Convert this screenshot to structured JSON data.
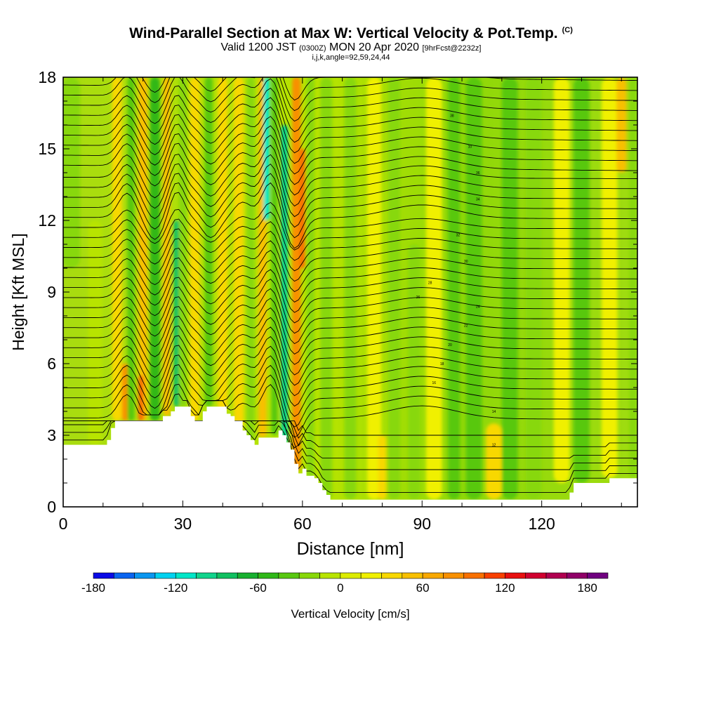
{
  "header": {
    "title": "Wind-Parallel Section at Max W: Vertical Velocity & Pot.Temp.",
    "title_mark": "(C)",
    "valid_prefix": "Valid 1200 JST",
    "valid_z": "(0300Z)",
    "valid_date": "MON 20 Apr 2020",
    "fcst": "[9hrFcst@2232z]",
    "indices": "i,j,k,angle=92,59,24,44"
  },
  "chart_data": {
    "type": "heatmap",
    "xlabel": "Distance [nm]",
    "ylabel": "Height [Kft MSL]",
    "xlim": [
      0,
      144
    ],
    "ylim": [
      0,
      18
    ],
    "x_ticks": [
      "0",
      "30",
      "60",
      "90",
      "120"
    ],
    "y_ticks": [
      "0",
      "3",
      "6",
      "9",
      "12",
      "15",
      "18"
    ],
    "colorbar": {
      "label": "Vertical Velocity [cm/s]",
      "ticks": [
        "-180",
        "-120",
        "-60",
        "0",
        "60",
        "120",
        "180"
      ],
      "levels": [
        -180,
        -165,
        -150,
        -135,
        -120,
        -105,
        -90,
        -75,
        -60,
        -45,
        -30,
        -15,
        0,
        15,
        30,
        45,
        60,
        75,
        90,
        105,
        120,
        135,
        150,
        165,
        180,
        195
      ],
      "colors": [
        "#0a0ae6",
        "#0a64f0",
        "#0a96f0",
        "#00d2f0",
        "#00e6c8",
        "#10d48c",
        "#10c060",
        "#18b030",
        "#30b818",
        "#58c810",
        "#88d808",
        "#b8e400",
        "#dcec00",
        "#f0f000",
        "#f8d800",
        "#f8c000",
        "#f8a800",
        "#f89000",
        "#f87000",
        "#f84000",
        "#e81010",
        "#d00030",
        "#b00050",
        "#900068",
        "#700080"
      ]
    },
    "terrain_height": [
      [
        0,
        2.6
      ],
      [
        10,
        2.6
      ],
      [
        11,
        2.8
      ],
      [
        12,
        3.3
      ],
      [
        13,
        3.6
      ],
      [
        24,
        3.6
      ],
      [
        25,
        3.8
      ],
      [
        27,
        4.0
      ],
      [
        28,
        4.2
      ],
      [
        31,
        4.2
      ],
      [
        32,
        3.8
      ],
      [
        33,
        3.6
      ],
      [
        35,
        4.0
      ],
      [
        36,
        4.2
      ],
      [
        40,
        4.2
      ],
      [
        41,
        3.9
      ],
      [
        42,
        3.8
      ],
      [
        43,
        3.6
      ],
      [
        45,
        3.2
      ],
      [
        46,
        3.0
      ],
      [
        47,
        2.8
      ],
      [
        48,
        2.6
      ],
      [
        49,
        2.9
      ],
      [
        53,
        2.9
      ],
      [
        54,
        3.2
      ],
      [
        55,
        3.0
      ],
      [
        56,
        2.7
      ],
      [
        57,
        2.4
      ],
      [
        58,
        1.8
      ],
      [
        59,
        1.4
      ],
      [
        60,
        1.6
      ],
      [
        61,
        1.3
      ],
      [
        63,
        1.2
      ],
      [
        64,
        1.0
      ],
      [
        65,
        0.7
      ],
      [
        66,
        0.5
      ],
      [
        67,
        0.3
      ],
      [
        68,
        0.3
      ],
      [
        114,
        0.3
      ],
      [
        127,
        0.6
      ],
      [
        128,
        1.0
      ],
      [
        136,
        1.0
      ],
      [
        137,
        1.2
      ],
      [
        144,
        1.2
      ]
    ],
    "potential_temperature_label_values": [
      "38",
      "10",
      "36",
      "34",
      "32",
      "30",
      "28",
      "26",
      "24",
      "22",
      "20",
      "18",
      "16",
      "14",
      "12"
    ]
  }
}
